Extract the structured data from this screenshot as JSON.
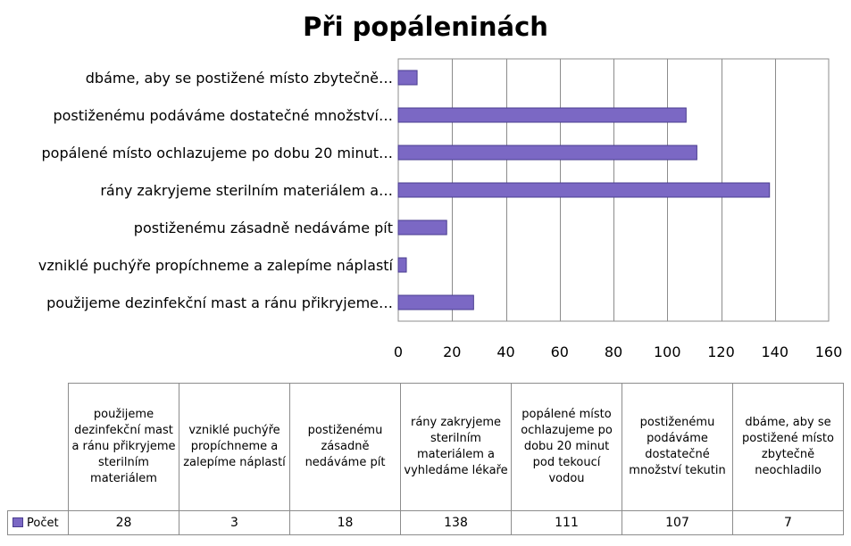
{
  "chart_data": {
    "type": "bar",
    "orientation": "horizontal",
    "title": "Při popáleninách",
    "categories_short": [
      "použijeme dezinfekční mast a ránu přikryjeme…",
      "vzniklé puchýře propíchneme a zalepíme náplastí",
      "postiženému zásadně nedáváme pít",
      "rány zakryjeme sterilním materiálem a…",
      "popálené místo ochlazujeme po dobu 20 minut…",
      "postiženému podáváme dostatečné množství…",
      "dbáme, aby se postižené místo zbytečně…"
    ],
    "categories": [
      "použijeme dezinfekční mast a ránu přikryjeme sterilním materiálem",
      "vzniklé puchýře propíchneme a zalepíme náplastí",
      "postiženému zásadně nedáváme pít",
      "rány zakryjeme sterilním materiálem a vyhledáme lékaře",
      "popálené místo ochlazujeme po dobu 20 minut pod tekoucí vodou",
      "postiženému podáváme dostatečné množství tekutin",
      "dbáme, aby se postižené místo zbytečně neochladilo"
    ],
    "series": [
      {
        "name": "Počet",
        "values": [
          28,
          3,
          18,
          138,
          111,
          107,
          7
        ],
        "display_values": [
          "28",
          "3",
          "18",
          "138",
          "111",
          "107",
          "7"
        ]
      }
    ],
    "xlim": [
      0,
      160
    ],
    "x_ticks": [
      0,
      20,
      40,
      60,
      80,
      100,
      120,
      140,
      160
    ],
    "x_tick_labels": [
      "0",
      "20",
      "40",
      "60",
      "80",
      "100",
      "120",
      "140",
      "160"
    ],
    "grid": true,
    "legend": "data table below chart",
    "bar_color": "#7b68c4",
    "bar_edge_color": "#4a3d8f",
    "grid_color": "#8c8c8c"
  }
}
